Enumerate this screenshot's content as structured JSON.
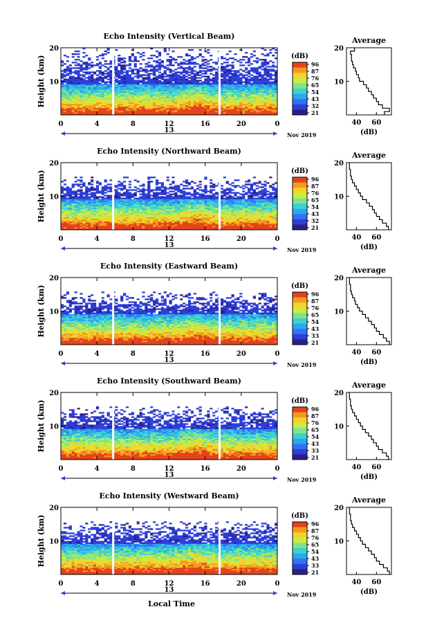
{
  "figure": {
    "xlabel": "Local Time",
    "date_label": "Nov 2019",
    "day_label": "13",
    "ylabel": "Height (km)",
    "units_label": "(dB)",
    "avg_title": "Average",
    "avg_xlabel": "(dB)"
  },
  "colormap": [
    "#2b1e8c",
    "#2c3fd8",
    "#2f73f5",
    "#2aa8f0",
    "#3bd2cf",
    "#7fe38a",
    "#c8ec44",
    "#f5d22a",
    "#f59a1f",
    "#e4431c"
  ],
  "chart_data": [
    {
      "type": "heatmap",
      "title": "Echo Intensity (Vertical Beam)",
      "xlabel": "Local Time",
      "ylabel": "Height (km)",
      "xlim": [
        0,
        24
      ],
      "ylim": [
        0,
        20
      ],
      "x_ticks": [
        "0",
        "4",
        "8",
        "12",
        "16",
        "20",
        "0"
      ],
      "y_ticks": [
        "20",
        "10"
      ],
      "colorbar_ticks": [
        "96",
        "87",
        "76",
        "65",
        "54",
        "43",
        "32",
        "21"
      ],
      "colorbar_unit": "(dB)",
      "data_gaps_hours": [
        5.8,
        17.6
      ],
      "average_profile": {
        "title": "Average",
        "xlabel": "(dB)",
        "x_ticks": [
          "40",
          "60"
        ],
        "xlim": [
          30,
          75
        ],
        "heights_km": [
          1,
          2,
          3,
          4,
          5,
          6,
          7,
          8,
          9,
          10,
          11,
          12,
          13,
          14,
          15,
          16,
          17,
          18,
          19,
          20
        ],
        "values_db": [
          68,
          73,
          66,
          62,
          60,
          57,
          55,
          52,
          50,
          47,
          43,
          42,
          40,
          39,
          37,
          36,
          35,
          35,
          34,
          38
        ]
      }
    },
    {
      "type": "heatmap",
      "title": "Echo Intensity (Northward Beam)",
      "xlabel": "Local Time",
      "ylabel": "Height (km)",
      "xlim": [
        0,
        24
      ],
      "ylim": [
        0,
        20
      ],
      "x_ticks": [
        "0",
        "4",
        "8",
        "12",
        "16",
        "20",
        "0"
      ],
      "y_ticks": [
        "20",
        "10"
      ],
      "colorbar_ticks": [
        "96",
        "87",
        "76",
        "65",
        "54",
        "43",
        "32",
        "21"
      ],
      "colorbar_unit": "(dB)",
      "data_gaps_hours": [
        5.8,
        17.6
      ],
      "average_profile": {
        "title": "Average",
        "xlabel": "(dB)",
        "x_ticks": [
          "40",
          "60"
        ],
        "xlim": [
          30,
          75
        ],
        "heights_km": [
          1,
          2,
          3,
          4,
          5,
          6,
          7,
          8,
          9,
          10,
          11,
          12,
          13,
          14,
          15,
          16,
          17,
          18,
          19,
          20
        ],
        "values_db": [
          72,
          70,
          66,
          63,
          60,
          58,
          56,
          53,
          50,
          46,
          44,
          42,
          40,
          38,
          36,
          35,
          34,
          34,
          33,
          33
        ]
      }
    },
    {
      "type": "heatmap",
      "title": "Echo Intensity (Eastward Beam)",
      "xlabel": "Local Time",
      "ylabel": "Height (km)",
      "xlim": [
        0,
        24
      ],
      "ylim": [
        0,
        20
      ],
      "x_ticks": [
        "0",
        "4",
        "8",
        "12",
        "16",
        "20",
        "0"
      ],
      "y_ticks": [
        "20",
        "10"
      ],
      "colorbar_ticks": [
        "96",
        "87",
        "76",
        "65",
        "54",
        "43",
        "33",
        "21"
      ],
      "colorbar_unit": "(dB)",
      "data_gaps_hours": [
        5.8,
        17.6
      ],
      "average_profile": {
        "title": "Average",
        "xlabel": "(dB)",
        "x_ticks": [
          "40",
          "60"
        ],
        "xlim": [
          30,
          75
        ],
        "heights_km": [
          1,
          2,
          3,
          4,
          5,
          6,
          7,
          8,
          9,
          10,
          11,
          12,
          13,
          14,
          15,
          16,
          17,
          18,
          19,
          20
        ],
        "values_db": [
          73,
          70,
          67,
          63,
          60,
          58,
          55,
          52,
          49,
          46,
          43,
          41,
          39,
          38,
          36,
          35,
          34,
          34,
          33,
          33
        ]
      }
    },
    {
      "type": "heatmap",
      "title": "Echo Intensity (Southward Beam)",
      "xlabel": "Local Time",
      "ylabel": "Height (km)",
      "xlim": [
        0,
        24
      ],
      "ylim": [
        0,
        20
      ],
      "x_ticks": [
        "0",
        "4",
        "8",
        "12",
        "16",
        "20",
        "0"
      ],
      "y_ticks": [
        "20",
        "10"
      ],
      "colorbar_ticks": [
        "96",
        "87",
        "76",
        "65",
        "54",
        "43",
        "33",
        "21"
      ],
      "colorbar_unit": "(dB)",
      "data_gaps_hours": [
        5.8,
        17.6
      ],
      "average_profile": {
        "title": "Average",
        "xlabel": "(dB)",
        "x_ticks": [
          "40",
          "60"
        ],
        "xlim": [
          30,
          75
        ],
        "heights_km": [
          1,
          2,
          3,
          4,
          5,
          6,
          7,
          8,
          9,
          10,
          11,
          12,
          13,
          14,
          15,
          16,
          17,
          18,
          19,
          20
        ],
        "values_db": [
          72,
          70,
          66,
          62,
          60,
          57,
          55,
          52,
          49,
          46,
          44,
          42,
          40,
          38,
          36,
          35,
          34,
          34,
          33,
          33
        ]
      }
    },
    {
      "type": "heatmap",
      "title": "Echo Intensity (Westward Beam)",
      "xlabel": "Local Time",
      "ylabel": "Height (km)",
      "xlim": [
        0,
        24
      ],
      "ylim": [
        0,
        20
      ],
      "x_ticks": [
        "0",
        "4",
        "8",
        "12",
        "16",
        "20",
        "0"
      ],
      "y_ticks": [
        "20",
        "10"
      ],
      "colorbar_ticks": [
        "96",
        "87",
        "76",
        "65",
        "54",
        "43",
        "33",
        "21"
      ],
      "colorbar_unit": "(dB)",
      "data_gaps_hours": [
        5.8,
        17.6
      ],
      "average_profile": {
        "title": "Average",
        "xlabel": "(dB)",
        "x_ticks": [
          "40",
          "60"
        ],
        "xlim": [
          30,
          75
        ],
        "heights_km": [
          1,
          2,
          3,
          4,
          5,
          6,
          7,
          8,
          9,
          10,
          11,
          12,
          13,
          14,
          15,
          16,
          17,
          18,
          19,
          20
        ],
        "values_db": [
          73,
          71,
          67,
          63,
          60,
          58,
          55,
          52,
          49,
          46,
          44,
          42,
          40,
          38,
          36,
          35,
          34,
          34,
          33,
          33
        ]
      }
    }
  ]
}
